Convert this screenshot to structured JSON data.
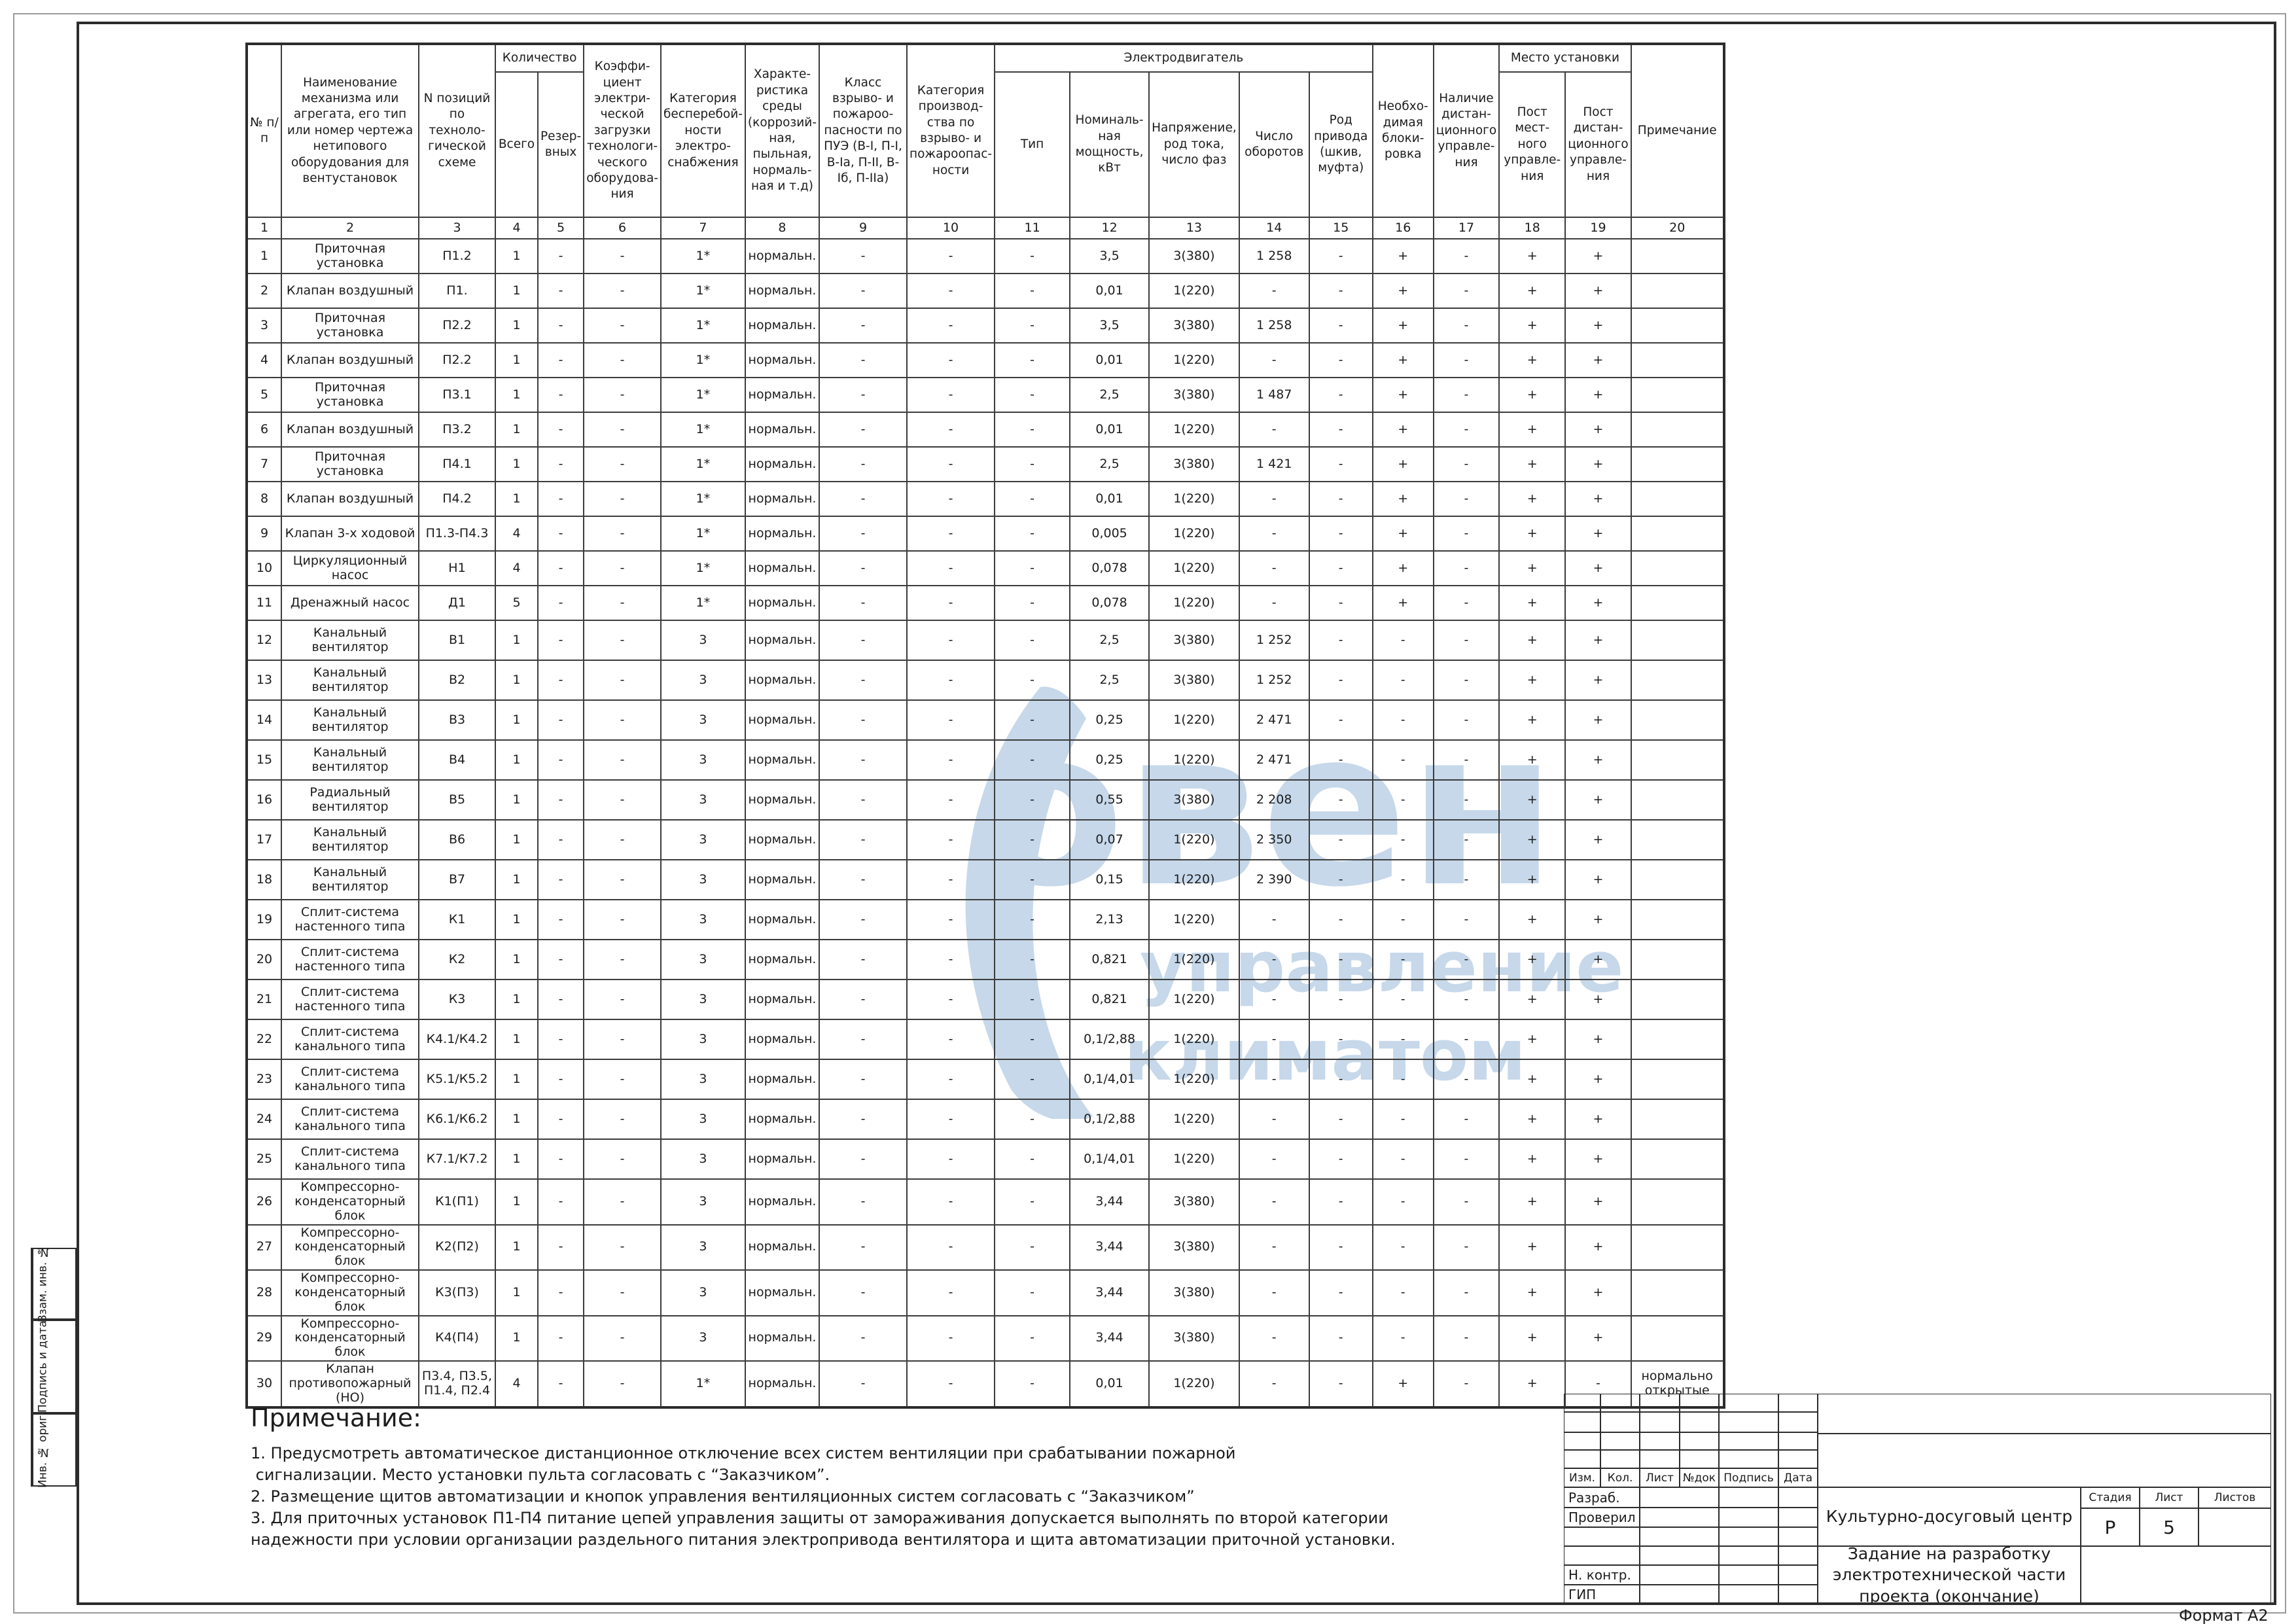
{
  "table": {
    "group_quantity": "Количество",
    "group_motor": "Электродвигатель",
    "group_place": "Место установки",
    "col_labels": {
      "c1": "№ п/п",
      "c2": "Наименование механизма или агрегата, его тип или номер чертежа нетипового оборудования для вентустановок",
      "c3": "N позиций по техноло-гической схеме",
      "c4": "Всего",
      "c5": "Резер-вных",
      "c6": "Коэффи-циент электри-ческой загрузки технологи-ческого оборудова-ния",
      "c7": "Категория бесперебой-ности электро-снабжения",
      "c8": "Характе-ристика среды (коррозий-ная, пыльная, нормаль-ная и т.д)",
      "c9": "Класс взрыво- и пожароо-пасности по ПУЭ (В-I, П-I, В-Iа, П-II, В-Iб, П-IIа)",
      "c10": "Категория производ-ства по взрыво- и пожароопас-ности",
      "c11": "Тип",
      "c12": "Номиналь-ная мощность, кВт",
      "c13": "Напряжение, род тока, число фаз",
      "c14": "Число оборотов",
      "c15": "Род привода (шкив, муфта)",
      "c16": "Необхо-димая блоки-ровка",
      "c17": "Наличие дистан-ционного управле-ния",
      "c18": "Пост мест-ного управле-ния",
      "c19": "Пост дистан-ционного управле-ния",
      "c20": "Примечание"
    },
    "col_numbers": [
      "1",
      "2",
      "3",
      "4",
      "5",
      "6",
      "7",
      "8",
      "9",
      "10",
      "11",
      "12",
      "13",
      "14",
      "15",
      "16",
      "17",
      "18",
      "19",
      "20"
    ],
    "rows": [
      [
        "1",
        "Приточная установка",
        "П1.2",
        "1",
        "-",
        "-",
        "1*",
        "нормальн.",
        "-",
        "-",
        "-",
        "3,5",
        "3(380)",
        "1 258",
        "-",
        "+",
        "-",
        "+",
        "+",
        ""
      ],
      [
        "2",
        "Клапан воздушный",
        "П1.",
        "1",
        "-",
        "-",
        "1*",
        "нормальн.",
        "-",
        "-",
        "-",
        "0,01",
        "1(220)",
        "-",
        "-",
        "+",
        "-",
        "+",
        "+",
        ""
      ],
      [
        "3",
        "Приточная установка",
        "П2.2",
        "1",
        "-",
        "-",
        "1*",
        "нормальн.",
        "-",
        "-",
        "-",
        "3,5",
        "3(380)",
        "1 258",
        "-",
        "+",
        "-",
        "+",
        "+",
        ""
      ],
      [
        "4",
        "Клапан воздушный",
        "П2.2",
        "1",
        "-",
        "-",
        "1*",
        "нормальн.",
        "-",
        "-",
        "-",
        "0,01",
        "1(220)",
        "-",
        "-",
        "+",
        "-",
        "+",
        "+",
        ""
      ],
      [
        "5",
        "Приточная установка",
        "П3.1",
        "1",
        "-",
        "-",
        "1*",
        "нормальн.",
        "-",
        "-",
        "-",
        "2,5",
        "3(380)",
        "1 487",
        "-",
        "+",
        "-",
        "+",
        "+",
        ""
      ],
      [
        "6",
        "Клапан воздушный",
        "П3.2",
        "1",
        "-",
        "-",
        "1*",
        "нормальн.",
        "-",
        "-",
        "-",
        "0,01",
        "1(220)",
        "-",
        "-",
        "+",
        "-",
        "+",
        "+",
        ""
      ],
      [
        "7",
        "Приточная установка",
        "П4.1",
        "1",
        "-",
        "-",
        "1*",
        "нормальн.",
        "-",
        "-",
        "-",
        "2,5",
        "3(380)",
        "1 421",
        "-",
        "+",
        "-",
        "+",
        "+",
        ""
      ],
      [
        "8",
        "Клапан воздушный",
        "П4.2",
        "1",
        "-",
        "-",
        "1*",
        "нормальн.",
        "-",
        "-",
        "-",
        "0,01",
        "1(220)",
        "-",
        "-",
        "+",
        "-",
        "+",
        "+",
        ""
      ],
      [
        "9",
        "Клапан 3-х ходовой",
        "П1.3-П4.3",
        "4",
        "-",
        "-",
        "1*",
        "нормальн.",
        "-",
        "-",
        "-",
        "0,005",
        "1(220)",
        "-",
        "-",
        "+",
        "-",
        "+",
        "+",
        ""
      ],
      [
        "10",
        "Циркуляционный насос",
        "Н1",
        "4",
        "-",
        "-",
        "1*",
        "нормальн.",
        "-",
        "-",
        "-",
        "0,078",
        "1(220)",
        "-",
        "-",
        "+",
        "-",
        "+",
        "+",
        ""
      ],
      [
        "11",
        "Дренажный насос",
        "Д1",
        "5",
        "-",
        "-",
        "1*",
        "нормальн.",
        "-",
        "-",
        "-",
        "0,078",
        "1(220)",
        "-",
        "-",
        "+",
        "-",
        "+",
        "+",
        ""
      ],
      [
        "12",
        "Канальный вентилятор",
        "В1",
        "1",
        "-",
        "-",
        "3",
        "нормальн.",
        "-",
        "-",
        "-",
        "2,5",
        "3(380)",
        "1 252",
        "-",
        "-",
        "-",
        "+",
        "+",
        ""
      ],
      [
        "13",
        "Канальный вентилятор",
        "В2",
        "1",
        "-",
        "-",
        "3",
        "нормальн.",
        "-",
        "-",
        "-",
        "2,5",
        "3(380)",
        "1 252",
        "-",
        "-",
        "-",
        "+",
        "+",
        ""
      ],
      [
        "14",
        "Канальный вентилятор",
        "В3",
        "1",
        "-",
        "-",
        "3",
        "нормальн.",
        "-",
        "-",
        "-",
        "0,25",
        "1(220)",
        "2 471",
        "-",
        "-",
        "-",
        "+",
        "+",
        ""
      ],
      [
        "15",
        "Канальный вентилятор",
        "В4",
        "1",
        "-",
        "-",
        "3",
        "нормальн.",
        "-",
        "-",
        "-",
        "0,25",
        "1(220)",
        "2 471",
        "-",
        "-",
        "-",
        "+",
        "+",
        ""
      ],
      [
        "16",
        "Радиальный вентилятор",
        "В5",
        "1",
        "-",
        "-",
        "3",
        "нормальн.",
        "-",
        "-",
        "-",
        "0,55",
        "3(380)",
        "2 208",
        "-",
        "-",
        "-",
        "+",
        "+",
        ""
      ],
      [
        "17",
        "Канальный вентилятор",
        "В6",
        "1",
        "-",
        "-",
        "3",
        "нормальн.",
        "-",
        "-",
        "-",
        "0,07",
        "1(220)",
        "2 350",
        "-",
        "-",
        "-",
        "+",
        "+",
        ""
      ],
      [
        "18",
        "Канальный вентилятор",
        "В7",
        "1",
        "-",
        "-",
        "3",
        "нормальн.",
        "-",
        "-",
        "-",
        "0,15",
        "1(220)",
        "2 390",
        "-",
        "-",
        "-",
        "+",
        "+",
        ""
      ],
      [
        "19",
        "Сплит-система настенного типа",
        "К1",
        "1",
        "-",
        "-",
        "3",
        "нормальн.",
        "-",
        "-",
        "-",
        "2,13",
        "1(220)",
        "-",
        "-",
        "-",
        "-",
        "+",
        "+",
        ""
      ],
      [
        "20",
        "Сплит-система настенного типа",
        "К2",
        "1",
        "-",
        "-",
        "3",
        "нормальн.",
        "-",
        "-",
        "-",
        "0,821",
        "1(220)",
        "-",
        "-",
        "-",
        "-",
        "+",
        "+",
        ""
      ],
      [
        "21",
        "Сплит-система настенного типа",
        "К3",
        "1",
        "-",
        "-",
        "3",
        "нормальн.",
        "-",
        "-",
        "-",
        "0,821",
        "1(220)",
        "-",
        "-",
        "-",
        "-",
        "+",
        "+",
        ""
      ],
      [
        "22",
        "Сплит-система канального типа",
        "К4.1/К4.2",
        "1",
        "-",
        "-",
        "3",
        "нормальн.",
        "-",
        "-",
        "-",
        "0,1/2,88",
        "1(220)",
        "-",
        "-",
        "-",
        "-",
        "+",
        "+",
        ""
      ],
      [
        "23",
        "Сплит-система канального типа",
        "К5.1/К5.2",
        "1",
        "-",
        "-",
        "3",
        "нормальн.",
        "-",
        "-",
        "-",
        "0,1/4,01",
        "1(220)",
        "-",
        "-",
        "-",
        "-",
        "+",
        "+",
        ""
      ],
      [
        "24",
        "Сплит-система канального типа",
        "К6.1/К6.2",
        "1",
        "-",
        "-",
        "3",
        "нормальн.",
        "-",
        "-",
        "-",
        "0,1/2,88",
        "1(220)",
        "-",
        "-",
        "-",
        "-",
        "+",
        "+",
        ""
      ],
      [
        "25",
        "Сплит-система канального типа",
        "К7.1/К7.2",
        "1",
        "-",
        "-",
        "3",
        "нормальн.",
        "-",
        "-",
        "-",
        "0,1/4,01",
        "1(220)",
        "-",
        "-",
        "-",
        "-",
        "+",
        "+",
        ""
      ],
      [
        "26",
        "Компрессорно-конденсаторный блок",
        "К1(П1)",
        "1",
        "-",
        "-",
        "3",
        "нормальн.",
        "-",
        "-",
        "-",
        "3,44",
        "3(380)",
        "-",
        "-",
        "-",
        "-",
        "+",
        "+",
        ""
      ],
      [
        "27",
        "Компрессорно-конденсаторный блок",
        "К2(П2)",
        "1",
        "-",
        "-",
        "3",
        "нормальн.",
        "-",
        "-",
        "-",
        "3,44",
        "3(380)",
        "-",
        "-",
        "-",
        "-",
        "+",
        "+",
        ""
      ],
      [
        "28",
        "Компрессорно-конденсаторный блок",
        "К3(П3)",
        "1",
        "-",
        "-",
        "3",
        "нормальн.",
        "-",
        "-",
        "-",
        "3,44",
        "3(380)",
        "-",
        "-",
        "-",
        "-",
        "+",
        "+",
        ""
      ],
      [
        "29",
        "Компрессорно-конденсаторный блок",
        "К4(П4)",
        "1",
        "-",
        "-",
        "3",
        "нормальн.",
        "-",
        "-",
        "-",
        "3,44",
        "3(380)",
        "-",
        "-",
        "-",
        "-",
        "+",
        "+",
        ""
      ],
      [
        "30",
        "Клапан противопожарный (НО)",
        "П3.4, П3.5, П1.4, П2.4",
        "4",
        "-",
        "-",
        "1*",
        "нормальн.",
        "-",
        "-",
        "-",
        "0,01",
        "1(220)",
        "-",
        "-",
        "+",
        "-",
        "+",
        "-",
        "нормально открытые"
      ]
    ]
  },
  "notes": {
    "title": "Примечание:",
    "lines": [
      "1. Предусмотреть автоматическое дистанционное отключение всех систем вентиляции при срабатывании пожарной",
      " сигнализации. Место установки пульта согласовать с “Заказчиком”.",
      "2. Размещение щитов автоматизации и кнопок управления вентиляционных систем согласовать с “Заказчиком”",
      "3. Для приточных установок П1-П4 питание цепей управления защиты от замораживания допускается выполнять по второй категории",
      "надежности при условии организации раздельного питания электропривода вентилятора и щита автоматизации приточной установки."
    ]
  },
  "watermark": {
    "brand_text": "овен",
    "tagline_line1": "управление",
    "tagline_line2": "климатом",
    "color": "#c6d8ea"
  },
  "margin_labels": [
    "Взам. инв. №",
    "Подпись и дата",
    "Инв. № ориг."
  ],
  "title_block": {
    "revision_columns": [
      "Изм.",
      "Кол.",
      "Лист",
      "№док",
      "Подпись",
      "Дата"
    ],
    "left_rows": [
      "Разраб.",
      "Проверил",
      "",
      "",
      "Н. контр.",
      "ГИП"
    ],
    "project": "Культурно-досуговый центр",
    "document": "Задание на разработку электротехнической части проекта (окончание)",
    "stage_label": "Стадия",
    "sheet_label": "Лист",
    "sheets_label": "Листов",
    "stage_value": "Р",
    "sheet_value": "5",
    "sheets_value": ""
  },
  "format_label": "Формат А2"
}
